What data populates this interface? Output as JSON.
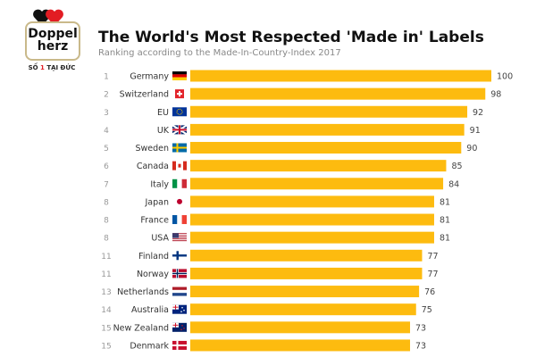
{
  "logo": {
    "line1": "Doppel",
    "line2": "herz",
    "tagline_prefix": "SỐ ",
    "tagline_number": "1",
    "tagline_suffix": " TẠI ĐỨC"
  },
  "colors": {
    "bar": "#FDBB0F",
    "title": "#111111",
    "subtitle": "#888888",
    "logo_red": "#E21C23"
  },
  "chart_data": {
    "type": "bar",
    "orientation": "horizontal",
    "title": "The World's Most Respected 'Made in' Labels",
    "subtitle": "Ranking according to the Made-In-Country-Index 2017",
    "xlim": [
      0,
      100
    ],
    "grid": false,
    "categories": [
      "Germany",
      "Switzerland",
      "EU",
      "UK",
      "Sweden",
      "Canada",
      "Italy",
      "Japan",
      "France",
      "USA",
      "Finland",
      "Norway",
      "Netherlands",
      "Australia",
      "New Zealand",
      "Denmark"
    ],
    "ranks": [
      "1",
      "2",
      "3",
      "4",
      "5",
      "6",
      "7",
      "8",
      "8",
      "8",
      "11",
      "11",
      "13",
      "14",
      "15",
      "15"
    ],
    "flags": [
      "de",
      "ch",
      "eu",
      "uk",
      "se",
      "ca",
      "it",
      "jp",
      "fr",
      "us",
      "fi",
      "no",
      "nl",
      "au",
      "nz",
      "dk"
    ],
    "values": [
      100,
      98,
      92,
      91,
      90,
      85,
      84,
      81,
      81,
      81,
      77,
      77,
      76,
      75,
      73,
      73
    ]
  }
}
